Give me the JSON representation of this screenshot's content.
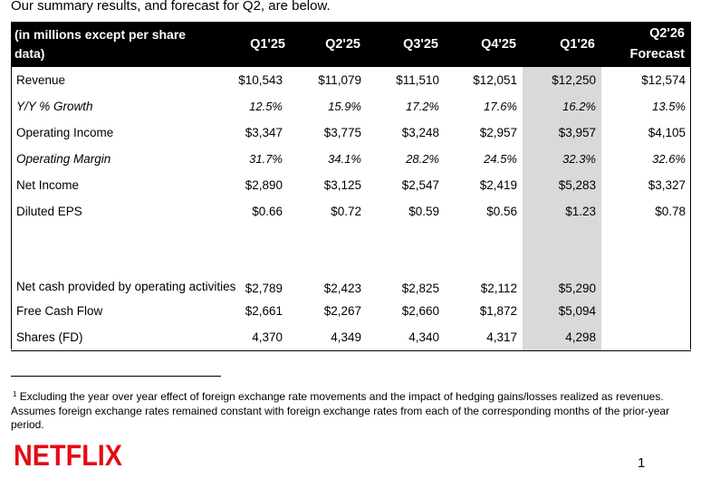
{
  "intro": "Our summary results, and forecast for Q2, are below.",
  "table": {
    "header_label": "(in millions except per share data)",
    "columns": [
      "Q1'25",
      "Q2'25",
      "Q3'25",
      "Q4'25",
      "Q1'26",
      "Q2'26 Forecast"
    ],
    "column_line1": [
      "Q1'25",
      "Q2'25",
      "Q3'25",
      "Q4'25",
      "Q1'26",
      "Q2'26"
    ],
    "column_line2": [
      "",
      "",
      "",
      "",
      "",
      "Forecast"
    ],
    "rows": [
      {
        "label": "Revenue",
        "values": [
          "$10,543",
          "$11,079",
          "$11,510",
          "$12,051",
          "$12,250",
          "$12,574"
        ]
      },
      {
        "label": "Y/Y % Growth",
        "values": [
          "12.5%",
          "15.9%",
          "17.2%",
          "17.6%",
          "16.2%",
          "13.5%"
        ]
      },
      {
        "label": "Operating Income",
        "values": [
          "$3,347",
          "$3,775",
          "$3,248",
          "$2,957",
          "$3,957",
          "$4,105"
        ]
      },
      {
        "label": "Operating Margin",
        "values": [
          "31.7%",
          "34.1%",
          "28.2%",
          "24.5%",
          "32.3%",
          "32.6%"
        ]
      },
      {
        "label": "Net Income",
        "values": [
          "$2,890",
          "$3,125",
          "$2,547",
          "$2,419",
          "$5,283",
          "$3,327"
        ]
      },
      {
        "label": "Diluted EPS",
        "values": [
          "$0.66",
          "$0.72",
          "$0.59",
          "$0.56",
          "$1.23",
          "$0.78"
        ]
      },
      {
        "label": "Net cash provided by operating activities",
        "values": [
          "$2,789",
          "$2,423",
          "$2,825",
          "$2,112",
          "$5,290",
          ""
        ]
      },
      {
        "label": "Free Cash Flow",
        "values": [
          "$2,661",
          "$2,267",
          "$2,660",
          "$1,872",
          "$5,094",
          ""
        ]
      },
      {
        "label": "Shares (FD)",
        "values": [
          "4,370",
          "4,349",
          "4,340",
          "4,317",
          "4,298",
          ""
        ]
      }
    ]
  },
  "footnote": {
    "marker": "1",
    "text": "Excluding the year over year effect of foreign exchange rate movements and the impact of hedging gains/losses realized as revenues. Assumes foreign exchange rates remained constant with foreign exchange rates from each of the corresponding months of the prior-year period."
  },
  "logo_text": "NETFLIX",
  "page_number": "1",
  "colors": {
    "header_bg": "#000000",
    "header_text": "#ffffff",
    "highlight_column": "#d9d9d9",
    "logo": "#e50914"
  }
}
